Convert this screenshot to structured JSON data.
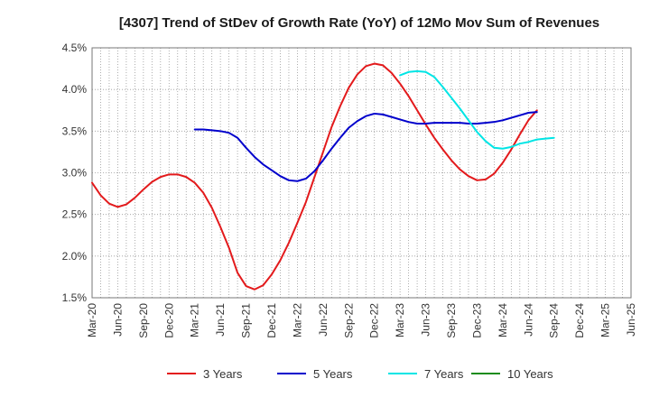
{
  "chart_data": {
    "type": "line",
    "title": "[4307]  Trend of StDev of Growth Rate (YoY) of 12Mo Mov Sum of Revenues",
    "xlabel": "",
    "ylabel": "",
    "ylim": [
      1.5,
      4.5
    ],
    "y_ticks": [
      1.5,
      2.0,
      2.5,
      3.0,
      3.5,
      4.0,
      4.5
    ],
    "y_tick_labels": [
      "1.5%",
      "2.0%",
      "2.5%",
      "3.0%",
      "3.5%",
      "4.0%",
      "4.5%"
    ],
    "x_range_months": [
      0,
      63
    ],
    "x_tick_labels": [
      "Mar-20",
      "Jun-20",
      "Sep-20",
      "Dec-20",
      "Mar-21",
      "Jun-21",
      "Sep-21",
      "Dec-21",
      "Mar-22",
      "Jun-22",
      "Sep-22",
      "Dec-22",
      "Mar-23",
      "Jun-23",
      "Sep-23",
      "Dec-23",
      "Mar-24",
      "Jun-24",
      "Sep-24",
      "Dec-24",
      "Mar-25",
      "Jun-25"
    ],
    "grid": true,
    "legend_position": "bottom",
    "series": [
      {
        "name": "3 Years",
        "color": "#e31a1c",
        "start_month": 0,
        "values": [
          2.88,
          2.73,
          2.63,
          2.59,
          2.62,
          2.7,
          2.8,
          2.89,
          2.95,
          2.98,
          2.98,
          2.95,
          2.88,
          2.76,
          2.58,
          2.35,
          2.1,
          1.8,
          1.64,
          1.6,
          1.65,
          1.78,
          1.95,
          2.16,
          2.4,
          2.65,
          2.95,
          3.25,
          3.55,
          3.8,
          4.02,
          4.18,
          4.28,
          4.31,
          4.29,
          4.2,
          4.07,
          3.92,
          3.75,
          3.58,
          3.42,
          3.28,
          3.15,
          3.04,
          2.96,
          2.91,
          2.92,
          2.99,
          3.12,
          3.28,
          3.46,
          3.63,
          3.75
        ]
      },
      {
        "name": "5 Years",
        "color": "#0000cc",
        "start_month": 12,
        "values": [
          3.52,
          3.52,
          3.51,
          3.5,
          3.48,
          3.42,
          3.3,
          3.19,
          3.1,
          3.03,
          2.96,
          2.91,
          2.9,
          2.93,
          3.02,
          3.15,
          3.29,
          3.42,
          3.54,
          3.62,
          3.68,
          3.71,
          3.7,
          3.67,
          3.64,
          3.61,
          3.59,
          3.59,
          3.6,
          3.6,
          3.6,
          3.6,
          3.59,
          3.59,
          3.6,
          3.61,
          3.63,
          3.66,
          3.69,
          3.72,
          3.73
        ]
      },
      {
        "name": "7 Years",
        "color": "#00e5e5",
        "start_month": 36,
        "values": [
          4.17,
          4.21,
          4.22,
          4.21,
          4.15,
          4.03,
          3.9,
          3.77,
          3.63,
          3.49,
          3.38,
          3.3,
          3.29,
          3.31,
          3.35,
          3.37,
          3.4,
          3.41,
          3.42
        ]
      },
      {
        "name": "10 Years",
        "color": "#1a8c1a",
        "start_month": 0,
        "values": []
      }
    ]
  }
}
